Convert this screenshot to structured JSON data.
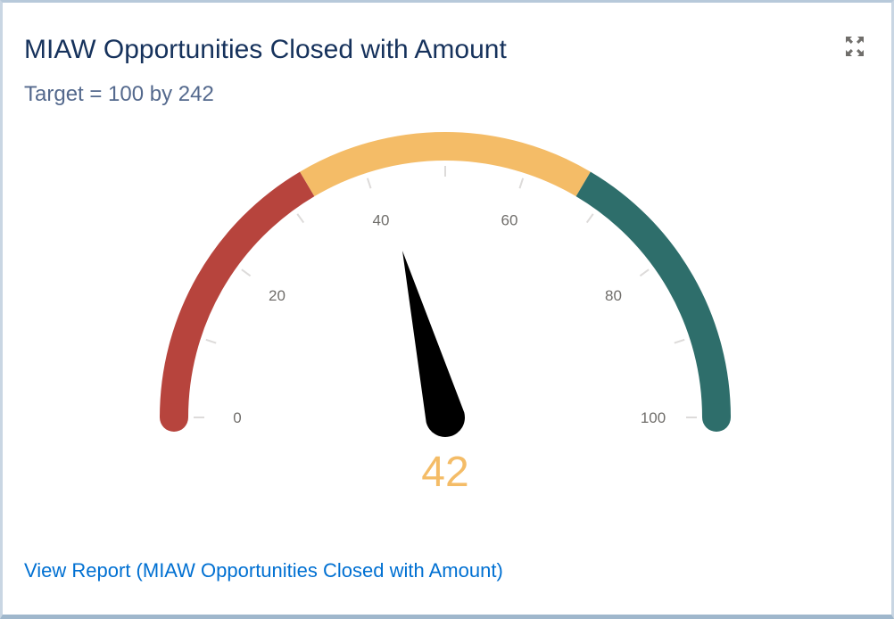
{
  "card": {
    "title": "MIAW Opportunities Closed with Amount",
    "subtitle": "Target = 100 by 242",
    "expand_icon": "expand-icon",
    "view_report_label": "View Report (MIAW Opportunities Closed with Amount)"
  },
  "chart_data": {
    "type": "gauge",
    "value": 42,
    "value_label": "42",
    "min": 0,
    "max": 100,
    "tick_labels": [
      "0",
      "20",
      "40",
      "60",
      "80",
      "100"
    ],
    "bands": [
      {
        "from": 0,
        "to": 33,
        "color": "#b7443d"
      },
      {
        "from": 33,
        "to": 67,
        "color": "#f4bc67"
      },
      {
        "from": 67,
        "to": 100,
        "color": "#2e6e6b"
      }
    ],
    "value_color": "#f4bc67",
    "needle_color": "#000000"
  }
}
